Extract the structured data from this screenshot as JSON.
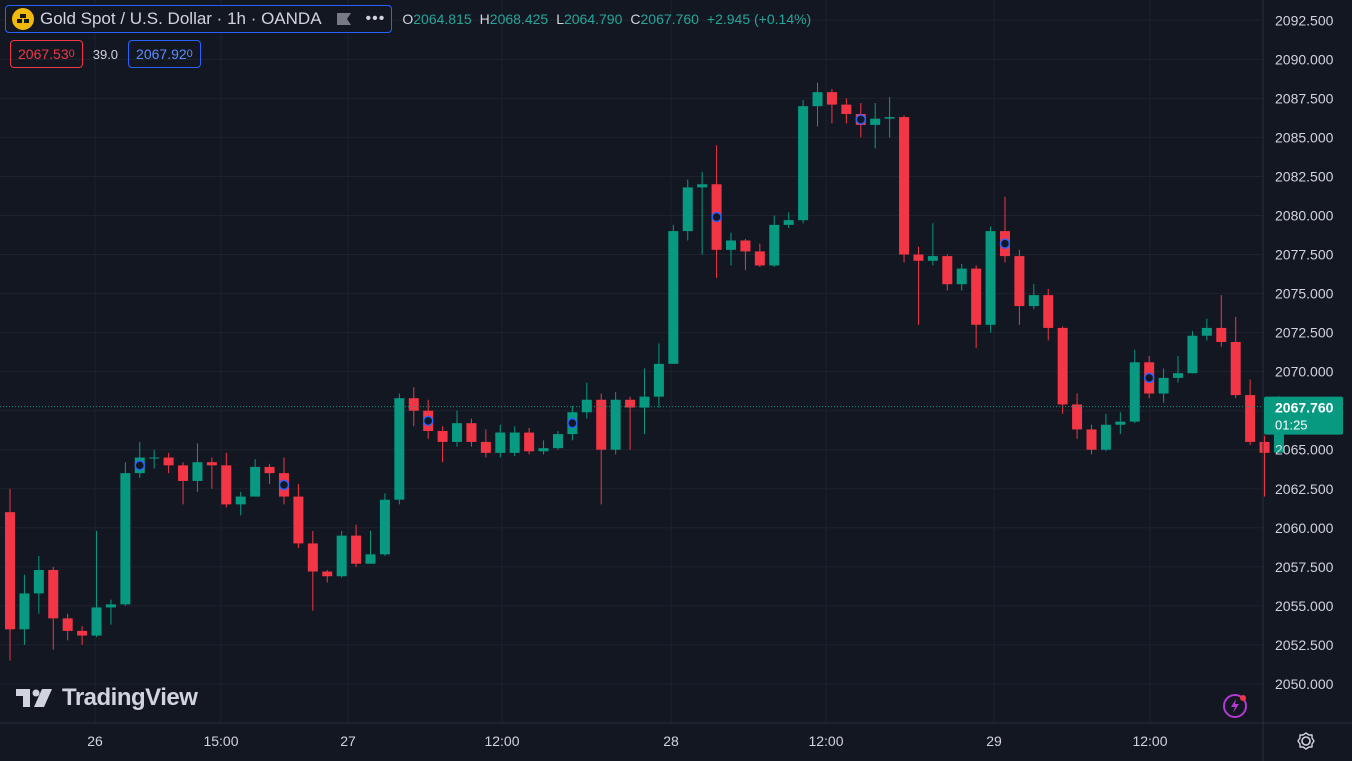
{
  "header": {
    "symbol_title": "Gold Spot / U.S. Dollar · 1h · OANDA",
    "ohlc": [
      {
        "key": "O",
        "value": "2064.815"
      },
      {
        "key": "H",
        "value": "2068.425"
      },
      {
        "key": "L",
        "value": "2064.790"
      },
      {
        "key": "C",
        "value": "2067.760"
      }
    ],
    "change": "+2.945 (+0.14%)"
  },
  "quotes": {
    "sell_main": "2067.53",
    "sell_sup": "0",
    "spread": "39.0",
    "buy_main": "2067.92",
    "buy_sup": "0"
  },
  "brand": "TradingView",
  "icons": [
    "gold-icon",
    "flag-icon",
    "more-icon",
    "tradingview-logo-icon",
    "lightning-icon",
    "gear-icon"
  ],
  "colors": {
    "up": "#089981",
    "down": "#f23645",
    "background": "#131722",
    "grid": "#1e222d",
    "accent": "#2962ff"
  },
  "chart_data": {
    "type": "candlestick",
    "interval": "1h",
    "ylim": [
      2047.5,
      2093.8
    ],
    "y_ticks": [
      "2050.000",
      "2052.500",
      "2055.000",
      "2057.500",
      "2060.000",
      "2062.500",
      "2065.000",
      "2067.500",
      "2070.000",
      "2072.500",
      "2075.000",
      "2077.500",
      "2080.000",
      "2082.500",
      "2085.000",
      "2087.500",
      "2090.000",
      "2092.500"
    ],
    "x_ticks": [
      "26",
      "15:00",
      "27",
      "12:00",
      "28",
      "12:00",
      "29",
      "12:00"
    ],
    "last_price": "2067.760",
    "countdown": "01:25",
    "candles": [
      [
        2061,
        2053.5,
        2062.5,
        2051.5
      ],
      [
        2053.5,
        2055.8,
        2057,
        2052.5
      ],
      [
        2055.8,
        2057.3,
        2058.2,
        2054.5
      ],
      [
        2057.3,
        2054.2,
        2057.5,
        2052.2
      ],
      [
        2054.2,
        2053.4,
        2054.5,
        2052.8
      ],
      [
        2053.4,
        2053.1,
        2053.7,
        2052.5
      ],
      [
        2053.1,
        2054.9,
        2059.8,
        2053.0
      ],
      [
        2054.9,
        2055.1,
        2055.4,
        2053.8
      ],
      [
        2055.1,
        2063.5,
        2064.2,
        2055.0
      ],
      [
        2063.5,
        2064.5,
        2065.5,
        2063.2
      ],
      [
        2064.5,
        2064.5,
        2065.0,
        2063.8
      ],
      [
        2064.5,
        2064.0,
        2064.8,
        2063.5
      ],
      [
        2064.0,
        2063.0,
        2064.2,
        2061.5
      ],
      [
        2063.0,
        2064.2,
        2065.4,
        2062.3
      ],
      [
        2064.2,
        2064.0,
        2064.5,
        2062.5
      ],
      [
        2064.0,
        2061.5,
        2064.8,
        2061.3
      ],
      [
        2061.5,
        2062.0,
        2062.3,
        2060.8
      ],
      [
        2062.0,
        2063.9,
        2064.4,
        2062.0
      ],
      [
        2063.9,
        2063.5,
        2064.1,
        2062.8
      ],
      [
        2063.5,
        2062.0,
        2064.5,
        2061.5
      ],
      [
        2062.0,
        2059.0,
        2062.8,
        2058.7
      ],
      [
        2059.0,
        2057.2,
        2059.8,
        2054.7
      ],
      [
        2057.2,
        2056.9,
        2057.3,
        2056.5
      ],
      [
        2056.9,
        2059.5,
        2059.8,
        2056.8
      ],
      [
        2059.5,
        2057.7,
        2060.2,
        2057.5
      ],
      [
        2057.7,
        2058.3,
        2059.8,
        2058.0
      ],
      [
        2058.3,
        2061.8,
        2062.2,
        2058.2
      ],
      [
        2061.8,
        2068.3,
        2068.6,
        2061.5
      ],
      [
        2068.3,
        2067.5,
        2069.0,
        2066.5
      ],
      [
        2067.5,
        2066.2,
        2068.2,
        2065.7
      ],
      [
        2066.2,
        2065.5,
        2066.5,
        2064.2
      ],
      [
        2065.5,
        2066.7,
        2067.5,
        2065.2
      ],
      [
        2066.7,
        2065.5,
        2067.0,
        2065.2
      ],
      [
        2065.5,
        2064.8,
        2066.3,
        2064.5
      ],
      [
        2064.8,
        2066.1,
        2066.6,
        2064.5
      ],
      [
        2064.8,
        2066.1,
        2066.5,
        2064.6
      ],
      [
        2066.1,
        2064.9,
        2066.4,
        2064.7
      ],
      [
        2064.9,
        2065.1,
        2065.6,
        2064.7
      ],
      [
        2065.1,
        2066.0,
        2066.2,
        2065.0
      ],
      [
        2066.0,
        2067.4,
        2067.8,
        2065.6
      ],
      [
        2067.4,
        2068.2,
        2069.3,
        2067.0
      ],
      [
        2068.2,
        2065.0,
        2068.6,
        2061.5
      ],
      [
        2065.0,
        2068.2,
        2068.7,
        2064.7
      ],
      [
        2068.2,
        2067.7,
        2068.4,
        2065.0
      ],
      [
        2067.7,
        2068.4,
        2070.2,
        2066.0
      ],
      [
        2068.4,
        2070.5,
        2071.8,
        2067.7
      ],
      [
        2070.5,
        2079.0,
        2079.4,
        2070.6
      ],
      [
        2079.0,
        2081.8,
        2082.3,
        2078.4
      ],
      [
        2081.8,
        2082.0,
        2082.8,
        2077.5
      ],
      [
        2082.0,
        2077.8,
        2084.5,
        2076.0
      ],
      [
        2077.8,
        2078.4,
        2078.9,
        2076.8
      ],
      [
        2078.4,
        2077.7,
        2078.5,
        2076.5
      ],
      [
        2077.7,
        2076.8,
        2078.2,
        2076.7
      ],
      [
        2076.8,
        2079.4,
        2080.0,
        2076.7
      ],
      [
        2079.4,
        2079.7,
        2080.2,
        2079.2
      ],
      [
        2079.7,
        2087.0,
        2087.4,
        2079.5
      ],
      [
        2087.0,
        2087.9,
        2088.5,
        2085.7
      ],
      [
        2087.9,
        2087.1,
        2088.1,
        2085.9
      ],
      [
        2087.1,
        2086.5,
        2087.5,
        2085.9
      ],
      [
        2086.5,
        2085.8,
        2087.2,
        2085.0
      ],
      [
        2085.8,
        2086.2,
        2087.2,
        2084.3
      ],
      [
        2086.2,
        2086.3,
        2087.6,
        2085.0
      ],
      [
        2086.3,
        2077.5,
        2086.4,
        2077.0
      ],
      [
        2077.5,
        2077.1,
        2078.0,
        2073.0
      ],
      [
        2077.1,
        2077.4,
        2079.5,
        2076.8
      ],
      [
        2077.4,
        2075.6,
        2077.5,
        2075.2
      ],
      [
        2075.6,
        2076.6,
        2076.9,
        2075.2
      ],
      [
        2076.6,
        2073.0,
        2076.8,
        2071.5
      ],
      [
        2073.0,
        2079.0,
        2079.3,
        2072.5
      ],
      [
        2079.0,
        2077.4,
        2081.2,
        2077.0
      ],
      [
        2077.4,
        2074.2,
        2077.8,
        2073.0
      ],
      [
        2074.2,
        2074.9,
        2075.6,
        2074.0
      ],
      [
        2074.9,
        2072.8,
        2075.3,
        2072.0
      ],
      [
        2072.8,
        2067.9,
        2072.9,
        2067.3
      ],
      [
        2067.9,
        2066.3,
        2068.6,
        2065.7
      ],
      [
        2066.3,
        2065.0,
        2066.6,
        2064.7
      ],
      [
        2065.0,
        2066.6,
        2067.3,
        2064.9
      ],
      [
        2066.6,
        2066.8,
        2067.4,
        2066.0
      ],
      [
        2066.8,
        2070.6,
        2071.4,
        2066.7
      ],
      [
        2070.6,
        2068.6,
        2071.0,
        2068.3
      ],
      [
        2068.6,
        2069.6,
        2070.2,
        2068.0
      ],
      [
        2069.6,
        2069.9,
        2071.0,
        2069.3
      ],
      [
        2069.9,
        2072.3,
        2072.6,
        2069.9
      ],
      [
        2072.3,
        2072.8,
        2073.4,
        2072.0
      ],
      [
        2072.8,
        2071.9,
        2074.9,
        2071.6
      ],
      [
        2071.9,
        2068.5,
        2073.5,
        2068.3
      ],
      [
        2068.5,
        2065.5,
        2069.5,
        2065.3
      ],
      [
        2065.5,
        2064.8,
        2065.9,
        2062.0
      ],
      [
        2064.815,
        2067.76,
        2068.425,
        2064.79
      ]
    ]
  }
}
